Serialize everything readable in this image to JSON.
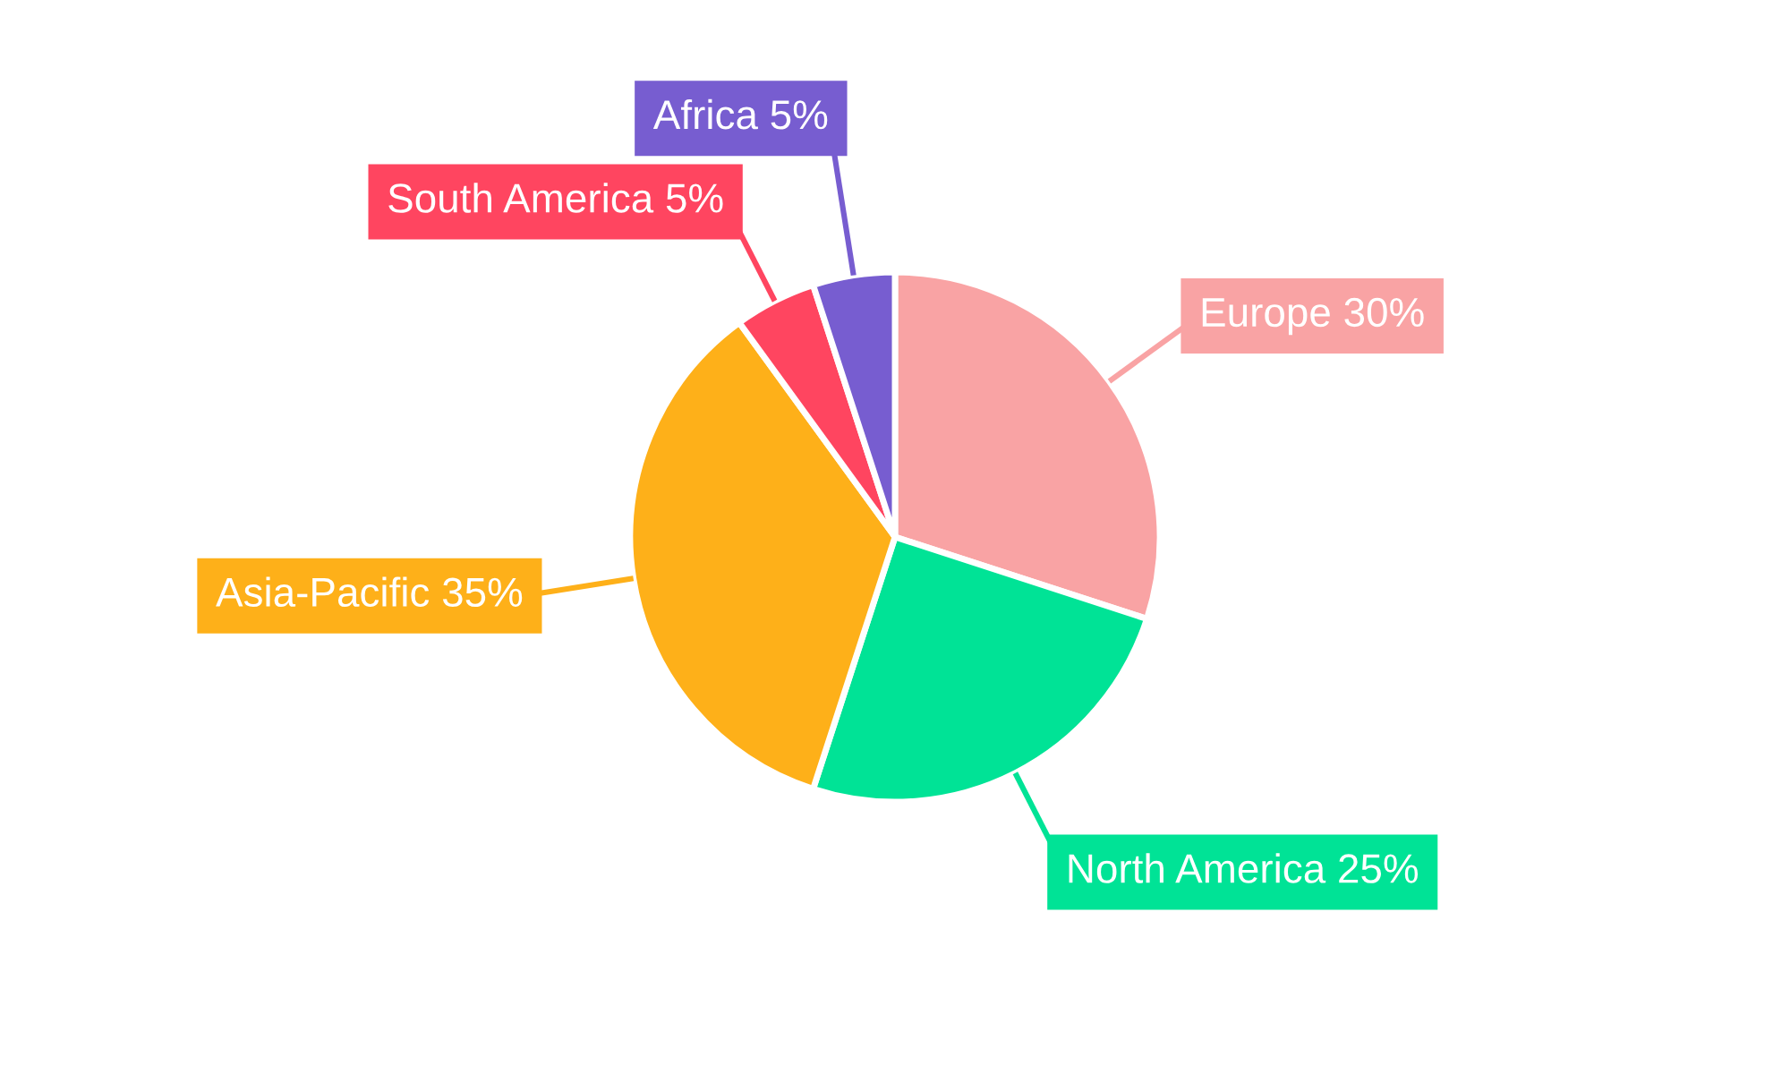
{
  "chart_data": {
    "type": "pie",
    "categories": [
      "Europe",
      "North America",
      "Asia-Pacific",
      "South America",
      "Africa"
    ],
    "values": [
      30,
      25,
      35,
      5,
      5
    ],
    "colors": [
      "#f9a3a4",
      "#00e396",
      "#feb019",
      "#ff4560",
      "#775dd0"
    ],
    "value_labels": [
      "30%",
      "25%",
      "35%",
      "5%",
      "5%"
    ]
  }
}
